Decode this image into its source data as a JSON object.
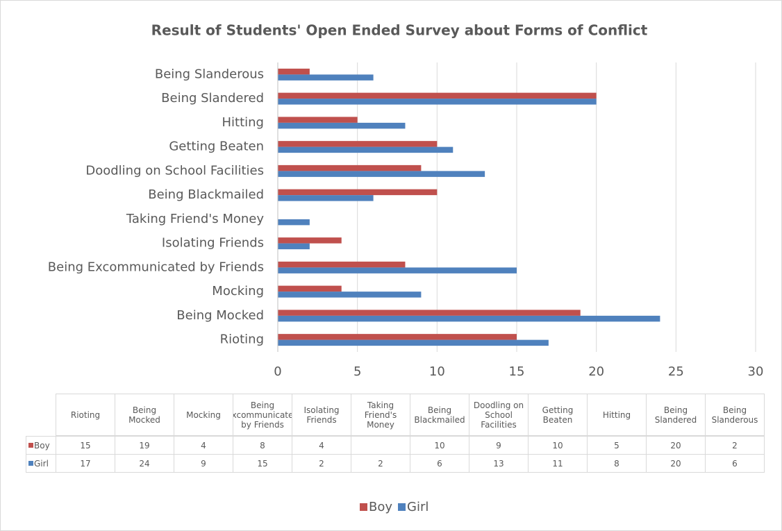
{
  "chart_data": {
    "type": "bar",
    "orientation": "horizontal",
    "title": "Result of Students' Open Ended Survey about Forms of Conflict",
    "categories": [
      "Rioting",
      "Being Mocked",
      "Mocking",
      "Being Excommunicated by Friends",
      "Isolating Friends",
      "Taking Friend's Money",
      "Being Blackmailed",
      "Doodling on School Facilities",
      "Getting Beaten",
      "Hitting",
      "Being Slandered",
      "Being Slanderous"
    ],
    "series": [
      {
        "name": "Boy",
        "color": "#c0504d",
        "values": [
          15,
          19,
          4,
          8,
          4,
          null,
          10,
          9,
          10,
          5,
          20,
          2
        ]
      },
      {
        "name": "Girl",
        "color": "#4f81bd",
        "values": [
          17,
          24,
          9,
          15,
          2,
          2,
          6,
          13,
          11,
          8,
          20,
          6
        ]
      }
    ],
    "xlim": [
      0,
      30
    ],
    "xticks": [
      0,
      5,
      10,
      15,
      20,
      25,
      30
    ],
    "grid": true,
    "data_table": true,
    "legend": "bottom"
  }
}
